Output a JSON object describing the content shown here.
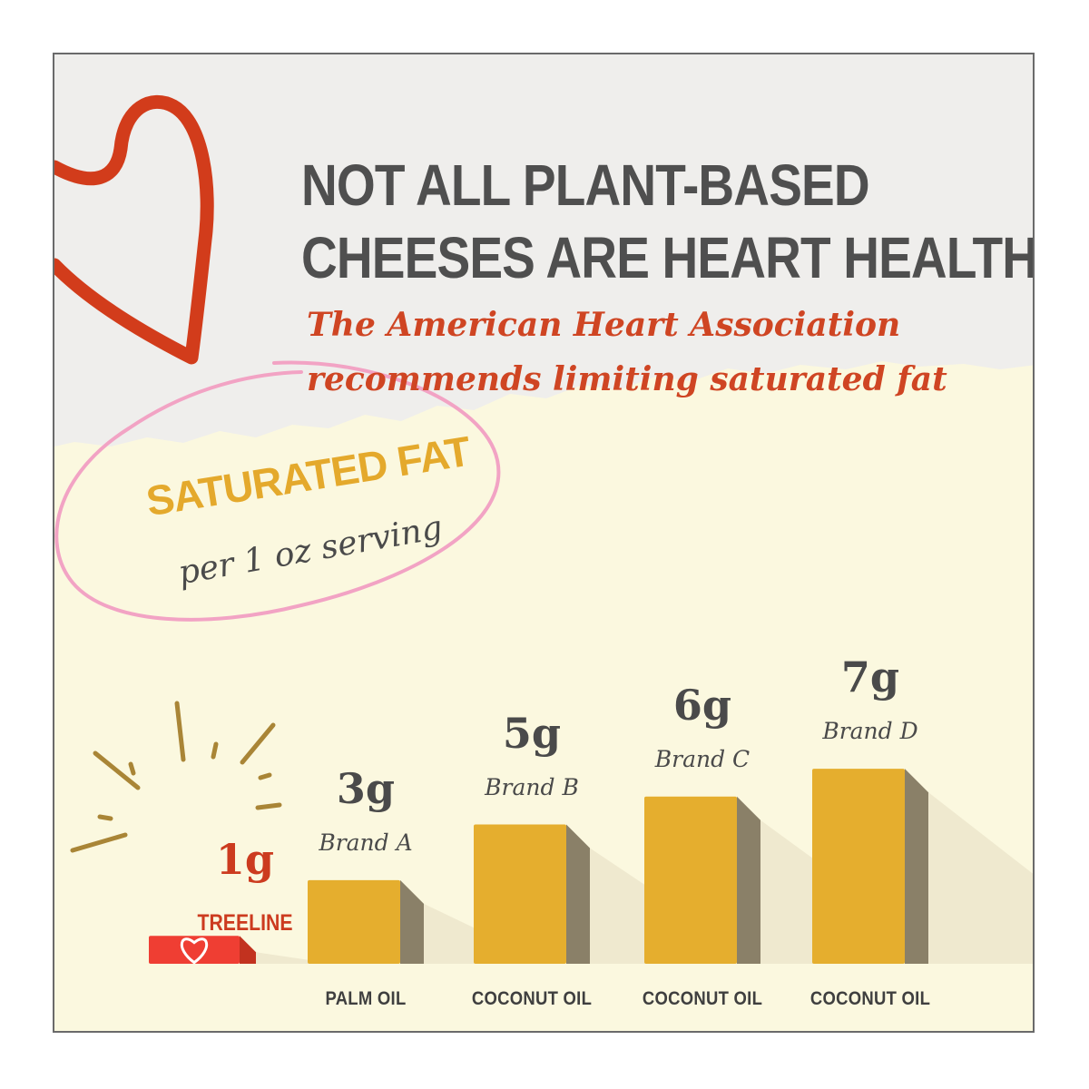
{
  "title_line1": "NOT ALL PLANT-BASED",
  "title_line2": "CHEESES ARE HEART HEALTHY",
  "subtitle_line1": "The American Heart Association",
  "subtitle_line2": "recommends limiting saturated fat",
  "badge_main": "SATURATED FAT",
  "badge_sub": "per 1 oz serving",
  "colors": {
    "bar_face": "#e5ae2e",
    "bar_side": "#8a8068",
    "highlight_bar": "#ef3e33",
    "highlight_text": "#cc3b1f",
    "heart_outline": "#d23c1b",
    "badge_circle": "#f2a3c4",
    "burst": "#a98536",
    "background_top": "#efeeec",
    "background_chart": "#fbf8df"
  },
  "chart_data": {
    "type": "bar",
    "categories": [
      "TREELINE",
      "Brand A",
      "Brand B",
      "Brand C",
      "Brand D"
    ],
    "values": [
      1,
      3,
      5,
      6,
      7
    ],
    "value_labels": [
      "1g",
      "3g",
      "5g",
      "6g",
      "7g"
    ],
    "oil_labels": [
      "",
      "PALM OIL",
      "COCONUT OIL",
      "COCONUT OIL",
      "COCONUT OIL"
    ],
    "highlight_index": 0,
    "unit": "g",
    "title": "SATURATED FAT",
    "subtitle": "per 1 oz serving",
    "ylim": [
      0,
      7
    ],
    "grid": false,
    "legend": "none"
  }
}
